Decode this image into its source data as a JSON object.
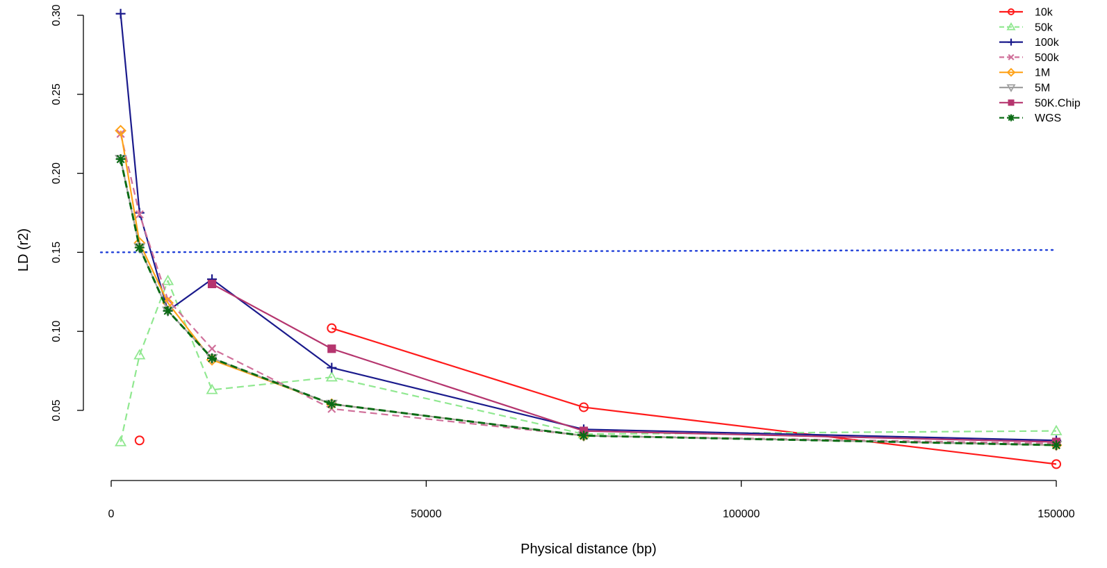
{
  "chart_data": {
    "type": "line",
    "xlabel": "Physical distance (bp)",
    "ylabel": "LD (r2)",
    "xlim": [
      0,
      150000
    ],
    "ylim": [
      0.02,
      0.3
    ],
    "x_ticks": [
      0,
      50000,
      100000,
      150000
    ],
    "y_ticks": [
      0.05,
      0.1,
      0.15,
      0.2,
      0.25,
      0.3
    ],
    "x_tick_labels": [
      "0",
      "50000",
      "100000",
      "150000"
    ],
    "y_tick_labels": [
      "0.05",
      "0.10",
      "0.15",
      "0.20",
      "0.25",
      "0.30"
    ],
    "grid": false,
    "legend_position": "top-right",
    "x": [
      1500,
      4500,
      9000,
      16000,
      35000,
      75000,
      150000
    ],
    "reference_line": {
      "y": 0.15,
      "color": "#1f3fd8",
      "style": "dotted"
    },
    "series": [
      {
        "name": "10k",
        "color": "#ff1a1a",
        "marker": "circle",
        "dash": "solid",
        "values": [
          null,
          0.031,
          null,
          null,
          0.102,
          0.052,
          0.016
        ]
      },
      {
        "name": "50k",
        "color": "#90e890",
        "marker": "triangle",
        "dash": "dashed",
        "values": [
          0.03,
          0.085,
          0.132,
          0.063,
          0.071,
          0.035,
          0.037
        ]
      },
      {
        "name": "100k",
        "color": "#1a1a8c",
        "marker": "plus",
        "dash": "solid",
        "values": [
          0.301,
          0.175,
          0.113,
          0.133,
          0.077,
          0.038,
          0.031
        ]
      },
      {
        "name": "500k",
        "color": "#d0709a",
        "marker": "cross",
        "dash": "dashed",
        "values": [
          0.225,
          0.174,
          0.12,
          0.089,
          0.051,
          0.034,
          0.029
        ]
      },
      {
        "name": "1M",
        "color": "#ffa31a",
        "marker": "diamond",
        "dash": "solid",
        "values": [
          0.227,
          0.156,
          0.118,
          0.082,
          0.054,
          0.034,
          0.028
        ]
      },
      {
        "name": "5M",
        "color": "#a0a0a0",
        "marker": "triangle-down",
        "dash": "solid",
        "values": [
          0.209,
          0.153,
          0.113,
          0.083,
          0.054,
          0.034,
          0.028
        ]
      },
      {
        "name": "50K.Chip",
        "color": "#b5356e",
        "marker": "square",
        "dash": "solid",
        "values": [
          null,
          null,
          null,
          0.13,
          0.089,
          0.037,
          0.03
        ]
      },
      {
        "name": "WGS",
        "color": "#0a6b14",
        "marker": "star",
        "dash": "dashed",
        "values": [
          0.209,
          0.153,
          0.113,
          0.083,
          0.054,
          0.034,
          0.028
        ]
      }
    ]
  }
}
